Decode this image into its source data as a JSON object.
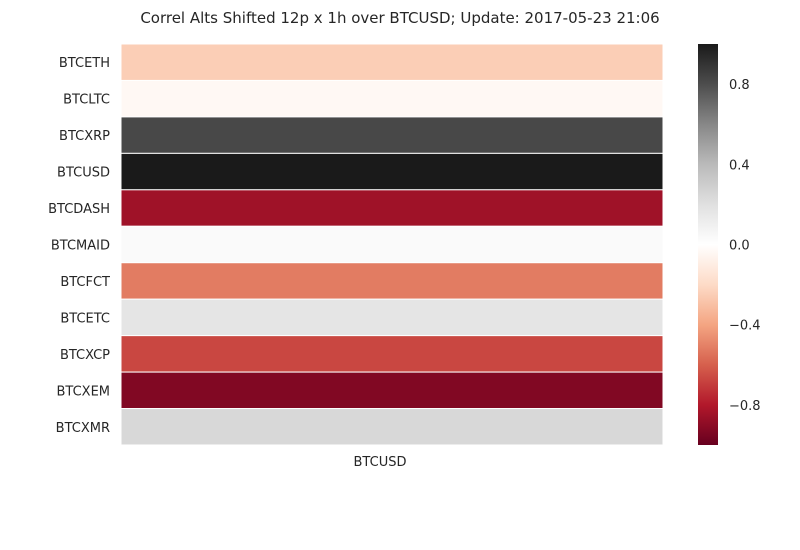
{
  "chart_data": {
    "type": "heatmap",
    "title": "Correl Alts Shifted 12p x 1h over BTCUSD; Update: 2017-05-23 21:06",
    "xlabel": "",
    "ylabel": "",
    "columns": [
      "BTCUSD"
    ],
    "rows": [
      "BTCETH",
      "BTCLTC",
      "BTCXRP",
      "BTCUSD",
      "BTCDASH",
      "BTCMAID",
      "BTCFCT",
      "BTCETC",
      "BTCXCP",
      "BTCXEM",
      "BTCXMR"
    ],
    "values": [
      -0.25,
      -0.04,
      0.82,
      1.0,
      -0.85,
      0.03,
      -0.52,
      0.17,
      -0.67,
      -0.93,
      0.24
    ],
    "colormap": "RdGy",
    "vmin": -1.0,
    "vmax": 1.0,
    "colorbar": {
      "ticks": [
        0.8,
        0.4,
        0.0,
        -0.4,
        -0.8
      ],
      "tick_labels": [
        "0.8",
        "0.4",
        "0.0",
        "−0.4",
        "−0.8"
      ]
    },
    "grid": false,
    "colors": {
      "neg_end": "#67001f",
      "mid": "#ffffff",
      "pos_end": "#1a1a1a"
    }
  }
}
